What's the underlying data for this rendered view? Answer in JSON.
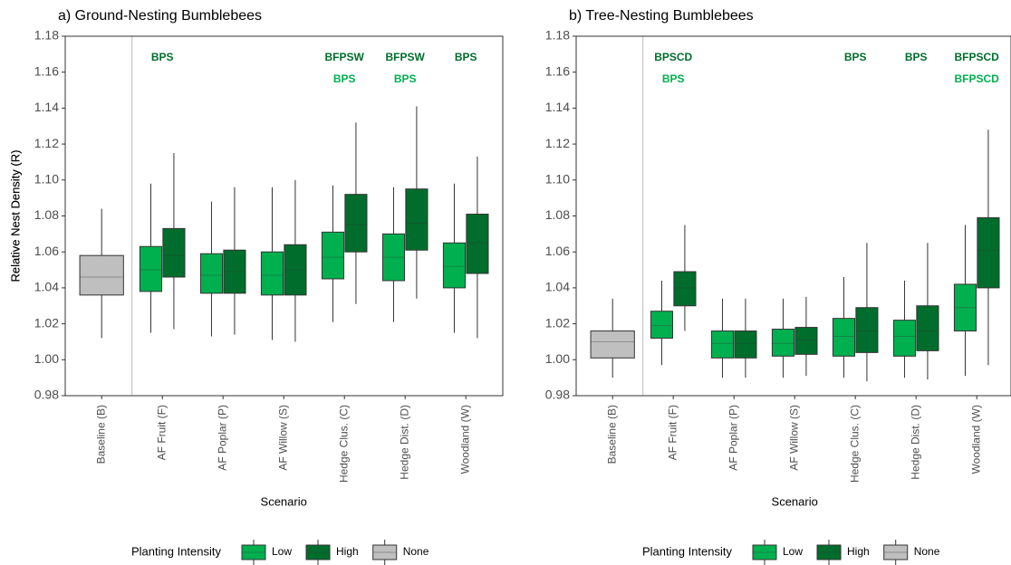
{
  "chart_data": [
    {
      "type": "box",
      "title": "a) Ground-Nesting Bumblebees",
      "x_label": "Scenario",
      "y_label": "Relative Nest Density (R)",
      "categories": [
        "Baseline (B)",
        "AF Fruit (F)",
        "AF Poplar (P)",
        "AF Willow (S)",
        "Hedge Clus. (C)",
        "Hedge Dist. (D)",
        "Woodland (W)"
      ],
      "ylim": [
        0.98,
        1.18
      ],
      "yticks": [
        0.98,
        {
          "value": 1,
          "label": "1.00"
        },
        1.02,
        1.04,
        1.06,
        1.08,
        {
          "value": 1.1,
          "label": "1.10"
        },
        1.12,
        1.14,
        1.16,
        1.18
      ],
      "legend_title": "Planting Intensity",
      "legend_position": "bottom",
      "series": [
        {
          "name": "Low",
          "color": "#00b04f",
          "labels": [
            null,
            null,
            null,
            null,
            "BPS",
            "BPS",
            null
          ],
          "values": [
            null,
            {
              "whislo": 1.015,
              "q1": 1.038,
              "med": 1.05,
              "q3": 1.063,
              "whishi": 1.098
            },
            {
              "whislo": 1.013,
              "q1": 1.037,
              "med": 1.047,
              "q3": 1.059,
              "whishi": 1.088
            },
            {
              "whislo": 1.011,
              "q1": 1.036,
              "med": 1.047,
              "q3": 1.06,
              "whishi": 1.096
            },
            {
              "whislo": 1.021,
              "q1": 1.045,
              "med": 1.057,
              "q3": 1.071,
              "whishi": 1.097
            },
            {
              "whislo": 1.021,
              "q1": 1.044,
              "med": 1.057,
              "q3": 1.07,
              "whishi": 1.096
            },
            {
              "whislo": 1.015,
              "q1": 1.04,
              "med": 1.052,
              "q3": 1.065,
              "whishi": 1.098
            }
          ]
        },
        {
          "name": "High",
          "color": "#006d2c",
          "labels": [
            null,
            "BPS",
            null,
            null,
            "BFPSW",
            "BFPSW",
            "BPS"
          ],
          "values": [
            null,
            {
              "whislo": 1.017,
              "q1": 1.046,
              "med": 1.058,
              "q3": 1.073,
              "whishi": 1.115
            },
            {
              "whislo": 1.014,
              "q1": 1.037,
              "med": 1.049,
              "q3": 1.061,
              "whishi": 1.096
            },
            {
              "whislo": 1.01,
              "q1": 1.036,
              "med": 1.05,
              "q3": 1.064,
              "whishi": 1.1
            },
            {
              "whislo": 1.031,
              "q1": 1.06,
              "med": 1.075,
              "q3": 1.092,
              "whishi": 1.132
            },
            {
              "whislo": 1.034,
              "q1": 1.061,
              "med": 1.076,
              "q3": 1.095,
              "whishi": 1.141
            },
            {
              "whislo": 1.012,
              "q1": 1.048,
              "med": 1.065,
              "q3": 1.081,
              "whishi": 1.113
            }
          ]
        },
        {
          "name": "None",
          "color": "#bfbfbf",
          "labels": [
            null,
            null,
            null,
            null,
            null,
            null,
            null
          ],
          "values": [
            {
              "whislo": 1.012,
              "q1": 1.036,
              "med": 1.046,
              "q3": 1.058,
              "whishi": 1.084
            },
            null,
            null,
            null,
            null,
            null,
            null
          ]
        }
      ]
    },
    {
      "type": "box",
      "title": "b) Tree-Nesting Bumblebees",
      "x_label": "Scenario",
      "y_label": "Relative Nest Density (R)",
      "categories": [
        "Baseline (B)",
        "AF Fruit (F)",
        "AF Poplar (P)",
        "AF Willow (S)",
        "Hedge Clus. (C)",
        "Hedge Dist. (D)",
        "Woodland (W)"
      ],
      "ylim": [
        0.98,
        1.18
      ],
      "yticks": [
        0.98,
        {
          "value": 1,
          "label": "1.00"
        },
        1.02,
        1.04,
        1.06,
        1.08,
        {
          "value": 1.1,
          "label": "1.10"
        },
        1.12,
        1.14,
        1.16,
        1.18
      ],
      "legend_title": "Planting Intensity",
      "legend_position": "bottom",
      "series": [
        {
          "name": "Low",
          "color": "#00b04f",
          "labels": [
            null,
            "BPS",
            null,
            null,
            null,
            null,
            "BFPSCD"
          ],
          "values": [
            null,
            {
              "whislo": 0.997,
              "q1": 1.012,
              "med": 1.019,
              "q3": 1.027,
              "whishi": 1.044
            },
            {
              "whislo": 0.99,
              "q1": 1.001,
              "med": 1.009,
              "q3": 1.016,
              "whishi": 1.034
            },
            {
              "whislo": 0.99,
              "q1": 1.002,
              "med": 1.009,
              "q3": 1.017,
              "whishi": 1.034
            },
            {
              "whislo": 0.99,
              "q1": 1.002,
              "med": 1.013,
              "q3": 1.023,
              "whishi": 1.046
            },
            {
              "whislo": 0.99,
              "q1": 1.002,
              "med": 1.013,
              "q3": 1.022,
              "whishi": 1.044
            },
            {
              "whislo": 0.991,
              "q1": 1.016,
              "med": 1.029,
              "q3": 1.042,
              "whishi": 1.075
            }
          ]
        },
        {
          "name": "High",
          "color": "#006d2c",
          "labels": [
            null,
            "BPSCD",
            null,
            null,
            "BPS",
            "BPS",
            "BFPSCD"
          ],
          "values": [
            null,
            {
              "whislo": 1.016,
              "q1": 1.03,
              "med": 1.04,
              "q3": 1.049,
              "whishi": 1.075
            },
            {
              "whislo": 0.99,
              "q1": 1.001,
              "med": 1.009,
              "q3": 1.016,
              "whishi": 1.034
            },
            {
              "whislo": 0.991,
              "q1": 1.003,
              "med": 1.011,
              "q3": 1.018,
              "whishi": 1.035
            },
            {
              "whislo": 0.988,
              "q1": 1.004,
              "med": 1.016,
              "q3": 1.029,
              "whishi": 1.065
            },
            {
              "whislo": 0.989,
              "q1": 1.005,
              "med": 1.016,
              "q3": 1.03,
              "whishi": 1.065
            },
            {
              "whislo": 0.997,
              "q1": 1.04,
              "med": 1.061,
              "q3": 1.079,
              "whishi": 1.128
            }
          ]
        },
        {
          "name": "None",
          "color": "#bfbfbf",
          "labels": [
            null,
            null,
            null,
            null,
            null,
            null,
            null
          ],
          "values": [
            {
              "whislo": 0.99,
              "q1": 1.001,
              "med": 1.01,
              "q3": 1.016,
              "whishi": 1.034
            },
            null,
            null,
            null,
            null,
            null,
            null
          ]
        }
      ]
    }
  ]
}
